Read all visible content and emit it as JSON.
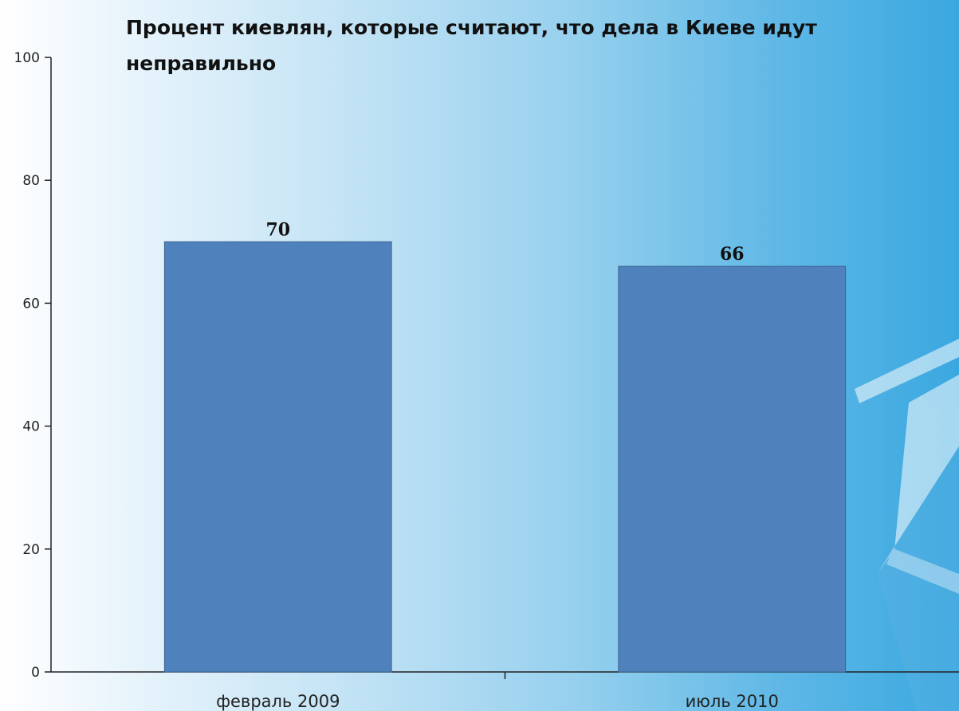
{
  "chart_data": {
    "type": "bar",
    "title": "Процент киевлян, которые считают, что дела в Киеве идут неправильно",
    "xlabel": "",
    "ylabel": "",
    "categories": [
      "февраль 2009",
      "июль 2010"
    ],
    "values": [
      70,
      66
    ],
    "data_labels": [
      "70",
      "66"
    ],
    "ylim": [
      0,
      100
    ],
    "yticks": [
      0,
      20,
      40,
      60,
      80,
      100
    ],
    "ytick_labels": [
      "0",
      "20",
      "40",
      "60",
      "80",
      "100"
    ],
    "grid": false,
    "legend": "none",
    "colors": {
      "bar": "#4f81bd",
      "bar_border": "#3c6591",
      "axis": "#222222"
    }
  }
}
